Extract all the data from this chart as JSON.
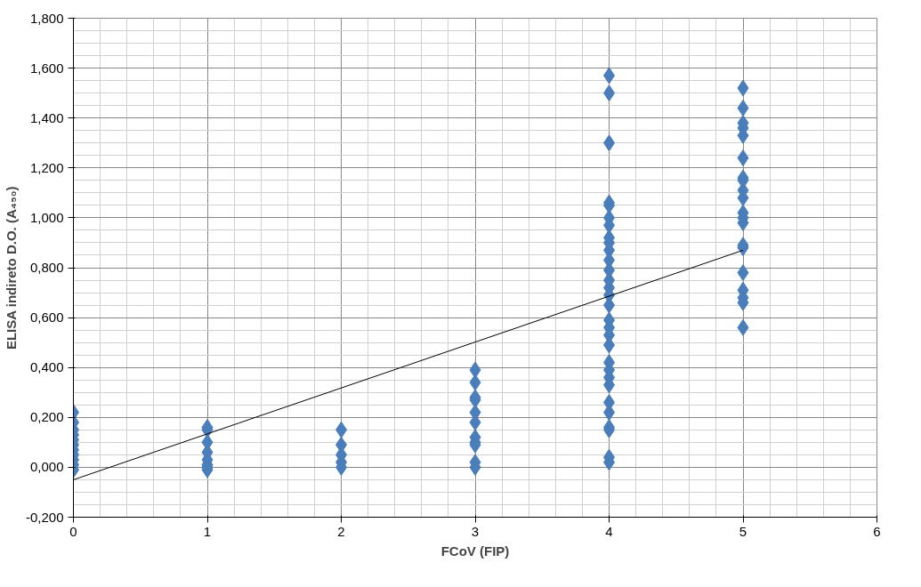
{
  "chart_data": {
    "type": "scatter",
    "xlabel": "FCoV (FIP)",
    "ylabel": "ELISA indireto D.O. (A₄₅₀)",
    "grid": true,
    "xlim": [
      0,
      6
    ],
    "xticks": [
      0,
      1,
      2,
      3,
      4,
      5,
      6
    ],
    "ylim": [
      -0.2,
      1.8
    ],
    "yticks": [
      {
        "value": -0.2,
        "label": "-0,200"
      },
      {
        "value": 0,
        "label": "0,000"
      },
      {
        "value": 0.2,
        "label": "0,200"
      },
      {
        "value": 0.4,
        "label": "0,400"
      },
      {
        "value": 0.6,
        "label": "0,600"
      },
      {
        "value": 0.8,
        "label": "0,800"
      },
      {
        "value": 1.0,
        "label": "1,000"
      },
      {
        "value": 1.2,
        "label": "1,200"
      },
      {
        "value": 1.4,
        "label": "1,400"
      },
      {
        "value": 1.6,
        "label": "1,600"
      },
      {
        "value": 1.8,
        "label": "1,800"
      }
    ],
    "series": [
      {
        "marker": "diamond",
        "color": "#4a7ebb",
        "x": [
          0,
          0,
          0,
          0,
          0,
          0,
          0,
          0,
          0,
          0,
          0,
          1,
          1,
          1,
          1,
          1,
          1,
          1,
          1,
          2,
          2,
          2,
          2,
          2,
          3,
          3,
          3,
          3,
          3,
          3,
          3,
          3,
          3,
          3,
          3,
          4,
          4,
          4,
          4,
          4,
          4,
          4,
          4,
          4,
          4,
          4,
          4,
          4,
          4,
          4,
          4,
          4,
          4,
          4,
          4,
          4,
          4,
          4,
          4,
          4,
          4,
          4,
          4,
          4,
          4,
          5,
          5,
          5,
          5,
          5,
          5,
          5,
          5,
          5,
          5,
          5,
          5,
          5,
          5,
          5,
          5,
          5,
          5,
          5,
          5
        ],
        "values": [
          0.22,
          0.18,
          0.15,
          0.13,
          0.11,
          0.09,
          0.07,
          0.05,
          0.03,
          0.01,
          -0.01,
          0.16,
          0.15,
          0.1,
          0.06,
          0.03,
          0.01,
          0.0,
          -0.01,
          0.15,
          0.09,
          0.05,
          0.02,
          0.0,
          0.39,
          0.34,
          0.28,
          0.27,
          0.22,
          0.18,
          0.12,
          0.1,
          0.09,
          0.02,
          0.0,
          1.57,
          1.5,
          1.3,
          1.06,
          1.05,
          1.0,
          0.97,
          0.92,
          0.9,
          0.87,
          0.83,
          0.79,
          0.75,
          0.72,
          0.69,
          0.65,
          0.59,
          0.56,
          0.53,
          0.49,
          0.42,
          0.39,
          0.36,
          0.33,
          0.26,
          0.22,
          0.16,
          0.15,
          0.04,
          0.02,
          1.52,
          1.44,
          1.38,
          1.36,
          1.33,
          1.24,
          1.16,
          1.15,
          1.11,
          1.08,
          1.02,
          1.0,
          0.98,
          0.89,
          0.88,
          0.78,
          0.71,
          0.68,
          0.66,
          0.56
        ]
      },
      {
        "type": "line",
        "color": "#000000",
        "x": [
          0,
          5
        ],
        "values": [
          -0.05,
          0.87
        ]
      }
    ]
  }
}
